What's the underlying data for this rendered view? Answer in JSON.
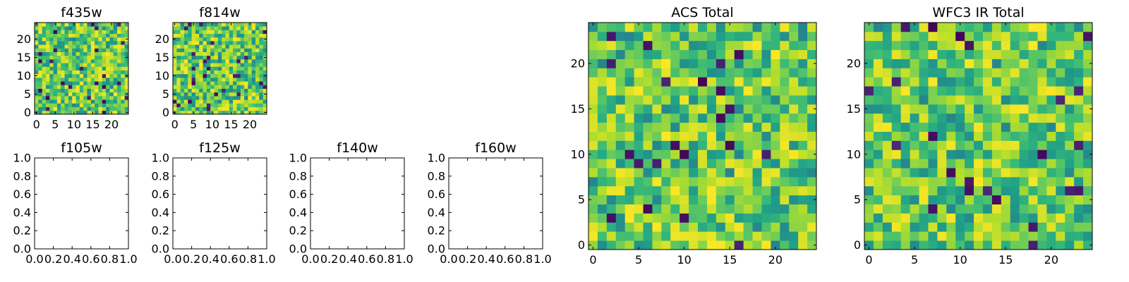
{
  "chart_data": [
    {
      "type": "heatmap",
      "title": "f435w",
      "grid_size": 25,
      "seed": 11,
      "xlim": [
        -0.5,
        24.5
      ],
      "ylim": [
        -0.5,
        24.5
      ],
      "xticks": [
        0,
        5,
        10,
        15,
        20
      ],
      "yticks": [
        0,
        5,
        10,
        15,
        20
      ],
      "colormap": "viridis"
    },
    {
      "type": "heatmap",
      "title": "f814w",
      "grid_size": 25,
      "seed": 23,
      "xlim": [
        -0.5,
        24.5
      ],
      "ylim": [
        -0.5,
        24.5
      ],
      "xticks": [
        0,
        5,
        10,
        15,
        20
      ],
      "yticks": [
        0,
        5,
        10,
        15,
        20
      ],
      "colormap": "viridis"
    },
    {
      "type": "heatmap",
      "title": "f105w",
      "empty": true,
      "xlim": [
        0.0,
        1.0
      ],
      "ylim": [
        0.0,
        1.0
      ],
      "xticks": [
        "0.0",
        "0.2",
        "0.4",
        "0.6",
        "0.8",
        "1.0"
      ],
      "yticks": [
        "0.0",
        "0.2",
        "0.4",
        "0.6",
        "0.8",
        "1.0"
      ]
    },
    {
      "type": "heatmap",
      "title": "f125w",
      "empty": true,
      "xlim": [
        0.0,
        1.0
      ],
      "ylim": [
        0.0,
        1.0
      ],
      "xticks": [
        "0.0",
        "0.2",
        "0.4",
        "0.6",
        "0.8",
        "1.0"
      ],
      "yticks": [
        "0.0",
        "0.2",
        "0.4",
        "0.6",
        "0.8",
        "1.0"
      ]
    },
    {
      "type": "heatmap",
      "title": "f140w",
      "empty": true,
      "xlim": [
        0.0,
        1.0
      ],
      "ylim": [
        0.0,
        1.0
      ],
      "xticks": [
        "0.0",
        "0.2",
        "0.4",
        "0.6",
        "0.8",
        "1.0"
      ],
      "yticks": [
        "0.0",
        "0.2",
        "0.4",
        "0.6",
        "0.8",
        "1.0"
      ]
    },
    {
      "type": "heatmap",
      "title": "f160w",
      "empty": true,
      "xlim": [
        0.0,
        1.0
      ],
      "ylim": [
        0.0,
        1.0
      ],
      "xticks": [
        "0.0",
        "0.2",
        "0.4",
        "0.6",
        "0.8",
        "1.0"
      ],
      "yticks": [
        "0.0",
        "0.2",
        "0.4",
        "0.6",
        "0.8",
        "1.0"
      ]
    },
    {
      "type": "heatmap",
      "title": "ACS Total",
      "grid_size": 25,
      "seed": 37,
      "xlim": [
        -0.5,
        24.5
      ],
      "ylim": [
        -0.5,
        24.5
      ],
      "xticks": [
        0,
        5,
        10,
        15,
        20
      ],
      "yticks": [
        0,
        5,
        10,
        15,
        20
      ],
      "colormap": "viridis"
    },
    {
      "type": "heatmap",
      "title": "WFC3 IR Total",
      "grid_size": 25,
      "seed": 53,
      "xlim": [
        -0.5,
        24.5
      ],
      "ylim": [
        -0.5,
        24.5
      ],
      "xticks": [
        0,
        5,
        10,
        15,
        20
      ],
      "yticks": [
        0,
        5,
        10,
        15,
        20
      ],
      "colormap": "viridis"
    }
  ]
}
